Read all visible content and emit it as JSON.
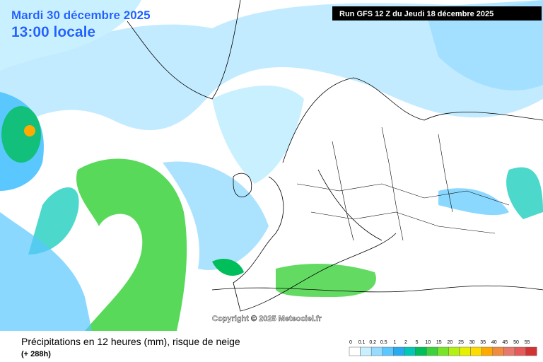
{
  "header": {
    "date": "Mardi 30 décembre 2025",
    "time": "13:00 locale",
    "run": "Run GFS 12 Z du Jeudi 18 décembre 2025"
  },
  "map": {
    "copyright": "Copyright © 2025 Meteociel.fr"
  },
  "footer": {
    "title": "Précipitations en 12 heures (mm), risque de neige",
    "lead": "(+ 288h)"
  },
  "legend": {
    "labels": [
      0,
      0.1,
      0.2,
      0.5,
      1,
      2,
      5,
      10,
      15,
      20,
      25,
      30,
      35,
      40,
      45,
      50,
      55
    ],
    "colors": [
      "#ffffff",
      "#c8f0ff",
      "#96dcff",
      "#5ac8ff",
      "#28aaf0",
      "#00c8b4",
      "#00be5a",
      "#3cd23c",
      "#78e628",
      "#b4f014",
      "#e6f000",
      "#ffdc00",
      "#ffaa00",
      "#f08c3c",
      "#e6786e",
      "#e65a5a",
      "#d23232"
    ]
  }
}
